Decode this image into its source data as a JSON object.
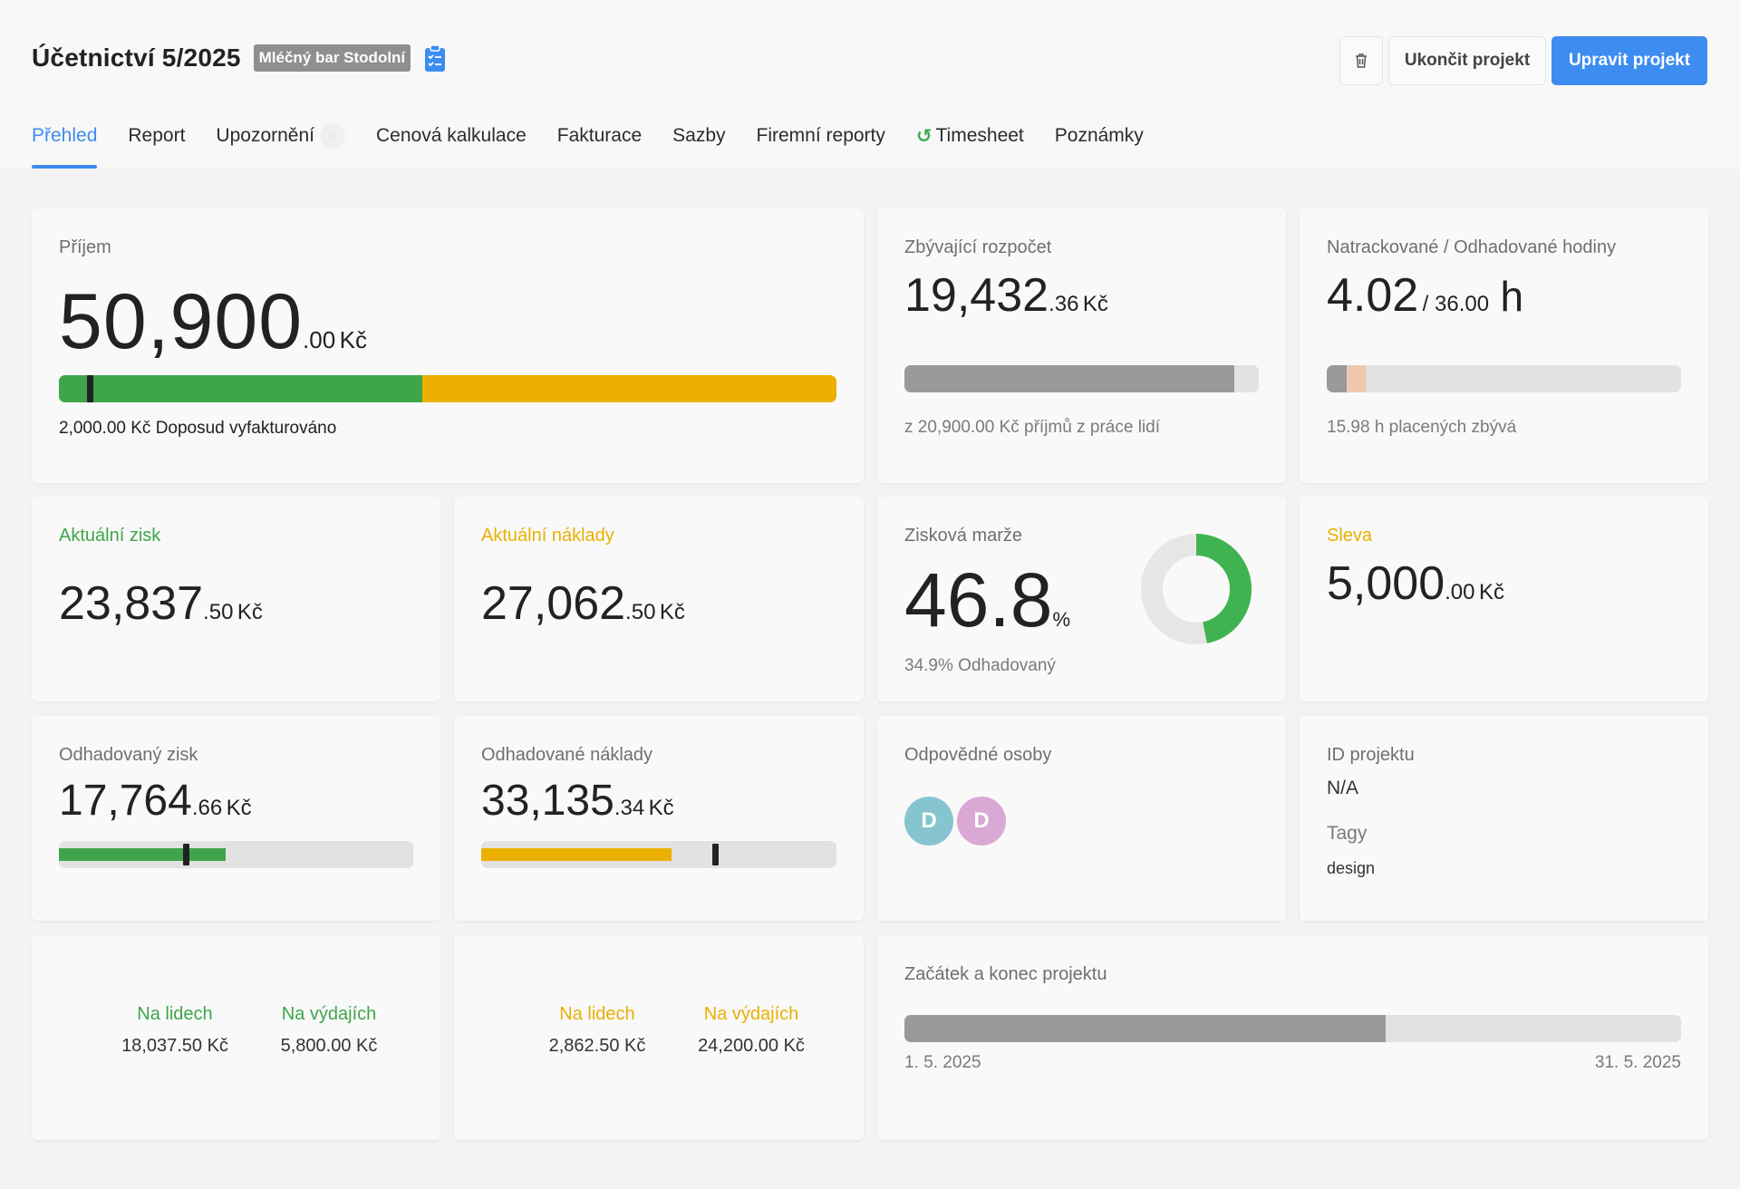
{
  "header": {
    "title": "Účetnictví 5/2025",
    "client_tag": "Mléčný bar Stodolní",
    "clip_icon": "clipboard-list-icon",
    "buttons": {
      "trash_icon": "🗑",
      "end_label": "Ukončit projekt",
      "edit_label": "Upravit projekt"
    }
  },
  "tabs": [
    {
      "label": "Přehled",
      "active": true
    },
    {
      "label": "Report"
    },
    {
      "label": "Upozornění",
      "count": "0"
    },
    {
      "label": "Cenová kalkulace"
    },
    {
      "label": "Fakturace"
    },
    {
      "label": "Sazby"
    },
    {
      "label": "Firemní reporty"
    },
    {
      "label": "Timesheet",
      "icon": "↺"
    },
    {
      "label": "Poznámky"
    }
  ],
  "colors": {
    "accent": "#3d8cf0",
    "green": "#3fa54b",
    "yellow": "#e8b000",
    "gray_bar": "#9a9a9a"
  },
  "revenue": {
    "label": "Příjem",
    "int": "50,900",
    "dec": ".00",
    "cur": "Kč",
    "invoiced_text": "2,000.00 Kč Doposud vyfakturováno",
    "bar": {
      "green_pct": 46.7,
      "marker_pct": 3.6
    }
  },
  "remaining_budget": {
    "label": "Zbývající rozpočet",
    "int": "19,432",
    "dec": ".36",
    "cur": "Kč",
    "sub": "z 20,900.00 Kč příjmů z práce lidí",
    "bar_fill_pct": 93
  },
  "hours": {
    "label": "Natrackované / Odhadované hodiny",
    "tracked": "4.02",
    "estimated": "/ 36.00",
    "unit": "h",
    "sub": "15.98 h placených zbývá",
    "bar": {
      "gray_pct": 5.5,
      "peach_pct": 5.5
    }
  },
  "current_profit": {
    "label": "Aktuální zisk",
    "int": "23,837",
    "dec": ".50",
    "cur": "Kč"
  },
  "current_costs": {
    "label": "Aktuální náklady",
    "int": "27,062",
    "dec": ".50",
    "cur": "Kč"
  },
  "margin": {
    "label": "Zisková marže",
    "int": "46.8",
    "unit": "%",
    "sub": "34.9% Odhadovaný",
    "donut_pct": 46.8
  },
  "discount": {
    "label": "Sleva",
    "int": "5,000",
    "dec": ".00",
    "cur": "Kč"
  },
  "est_profit": {
    "label": "Odhadovaný zisk",
    "int": "17,764",
    "dec": ".66",
    "cur": "Kč",
    "bar": {
      "fill_pct": 47,
      "marker_pct": 35
    }
  },
  "est_costs": {
    "label": "Odhadované náklady",
    "int": "33,135",
    "dec": ".34",
    "cur": "Kč",
    "bar": {
      "fill_pct": 53.5,
      "marker_pct": 65
    }
  },
  "responsible": {
    "label": "Odpovědné osoby",
    "avatars": [
      {
        "initial": "D",
        "color": "#86c5d0"
      },
      {
        "initial": "D",
        "color": "#d9a8d4"
      }
    ]
  },
  "project_id": {
    "label": "ID projektu",
    "value": "N/A",
    "tags_label": "Tagy",
    "tag": "design"
  },
  "profit_split": {
    "people_label": "Na lidech",
    "people_value": "18,037.50 Kč",
    "expenses_label": "Na výdajích",
    "expenses_value": "5,800.00 Kč"
  },
  "costs_split": {
    "people_label": "Na lidech",
    "people_value": "2,862.50 Kč",
    "expenses_label": "Na výdajích",
    "expenses_value": "24,200.00 Kč"
  },
  "timeline": {
    "label": "Začátek a konec projektu",
    "start": "1. 5. 2025",
    "end": "31. 5. 2025",
    "fill_pct": 62
  }
}
